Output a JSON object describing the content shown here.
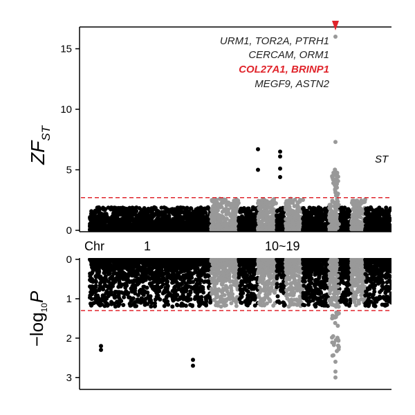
{
  "chart_data": [
    {
      "type": "scatter",
      "panel": "top",
      "ylabel": {
        "main": "ZF",
        "sub": "ST"
      },
      "ylim": [
        0,
        16.8
      ],
      "yticks": [
        0,
        5,
        10,
        15
      ],
      "threshold": 2.7,
      "threshold_color": "#e0242b",
      "colors": [
        "#000000",
        "#999999"
      ],
      "arrow_color": "#e0242b",
      "corner_label": "ST",
      "genes": [
        {
          "text": "URM1, TOR2A, PTRH1",
          "highlight": false
        },
        {
          "text": "CERCAM, ORM1",
          "highlight": false
        },
        {
          "text": "COL27A1, BRINP1",
          "highlight": true
        },
        {
          "text": "MEGF9, ASTN2",
          "highlight": false
        }
      ],
      "outliers": [
        {
          "chrom": 16,
          "y": 16.0
        },
        {
          "chrom": 16,
          "y": 7.3
        },
        {
          "chrom": 12,
          "y": 6.5
        },
        {
          "chrom": 12,
          "y": 6.1
        },
        {
          "chrom": 12,
          "y": 5.1
        },
        {
          "chrom": 12,
          "y": 4.4
        },
        {
          "chrom": 11,
          "y": 6.7
        },
        {
          "chrom": 11,
          "y": 5.0
        }
      ]
    },
    {
      "type": "scatter",
      "panel": "bottom",
      "ylabel": {
        "pre": "−log",
        "sub": "10",
        "post": "P"
      },
      "ylim": [
        0,
        3.25
      ],
      "yticks": [
        0,
        1,
        2,
        3
      ],
      "inverted": true,
      "threshold": 1.3,
      "threshold_color": "#e0242b",
      "colors": [
        "#000000",
        "#999999"
      ],
      "outliers": [
        {
          "chrom": 16,
          "y": 3.0
        },
        {
          "chrom": 16,
          "y": 2.85
        },
        {
          "chrom": 16,
          "y": 2.6
        },
        {
          "chrom": 1,
          "y": 2.3
        },
        {
          "chrom": 1,
          "y": 2.2
        },
        {
          "chrom": 6,
          "y": 2.7
        },
        {
          "chrom": 6,
          "y": 2.55
        }
      ]
    }
  ],
  "xaxis": {
    "title": "Chr",
    "labels": [
      "1",
      "10~19"
    ]
  }
}
